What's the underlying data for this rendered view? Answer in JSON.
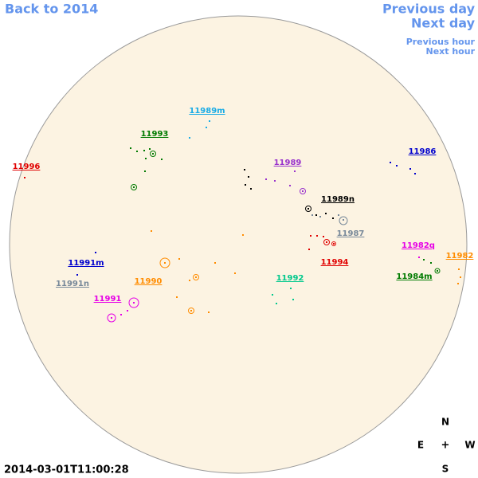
{
  "navigation": {
    "back": "Back to 2014",
    "previous_day": "Previous day",
    "next_day": "Next day",
    "previous_hour": "Previous hour",
    "next_hour": "Next hour"
  },
  "timestamp": "2014-03-01T11:00:28",
  "compass": {
    "north": "N",
    "east": "E",
    "center": "+",
    "west": "W",
    "south": "S"
  },
  "regions": [
    {
      "label": "11989m",
      "color": "#1aace6"
    },
    {
      "label": "11993",
      "color": "#007a00"
    },
    {
      "label": "11996",
      "color": "#e00000"
    },
    {
      "label": "11989",
      "color": "#9932cc"
    },
    {
      "label": "11986",
      "color": "#0000cd"
    },
    {
      "label": "11989n",
      "color": "#000000"
    },
    {
      "label": "11987",
      "color": "#778899"
    },
    {
      "label": "11994",
      "color": "#e00000"
    },
    {
      "label": "11982q",
      "color": "#e600e6"
    },
    {
      "label": "11982",
      "color": "#ff8c00"
    },
    {
      "label": "11984m",
      "color": "#007a00"
    },
    {
      "label": "11991m",
      "color": "#0000cd"
    },
    {
      "label": "11991n",
      "color": "#778899"
    },
    {
      "label": "11990",
      "color": "#ff8c00"
    },
    {
      "label": "11992",
      "color": "#00c88c"
    },
    {
      "label": "11991",
      "color": "#e600e6"
    }
  ]
}
